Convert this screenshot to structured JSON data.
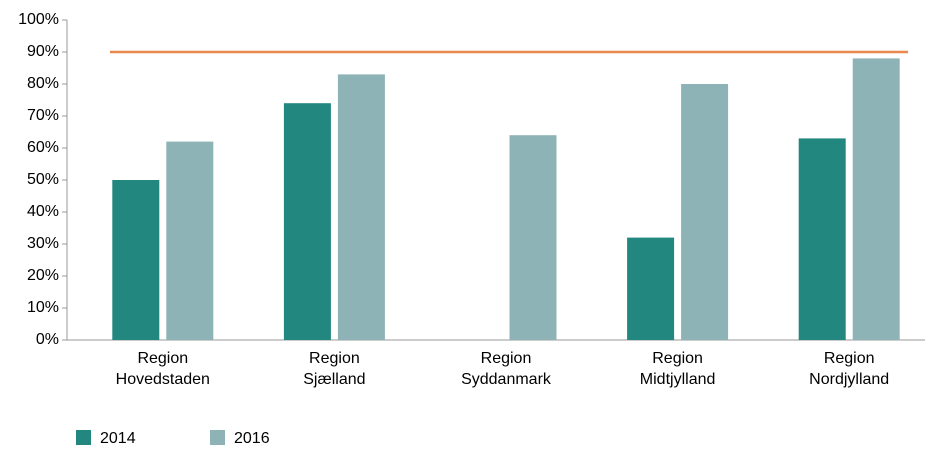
{
  "chart_data": {
    "type": "bar",
    "categories": [
      "Region\nHovedstaden",
      "Region\nSjælland",
      "Region\nSyddanmark",
      "Region\nMidtjylland",
      "Region\nNordjylland"
    ],
    "series": [
      {
        "name": "2014",
        "color": "#21877f",
        "values": [
          50,
          74,
          null,
          32,
          63
        ]
      },
      {
        "name": "2016",
        "color": "#8db3b7",
        "values": [
          62,
          83,
          64,
          80,
          88
        ]
      }
    ],
    "reference_line": {
      "value": 90,
      "color": "#e8884e"
    },
    "ylim": [
      0,
      100
    ],
    "yticks": [
      {
        "value": 0,
        "label": "0%"
      },
      {
        "value": 10,
        "label": "10%"
      },
      {
        "value": 20,
        "label": "20%"
      },
      {
        "value": 30,
        "label": "30%"
      },
      {
        "value": 40,
        "label": "40%"
      },
      {
        "value": 50,
        "label": "50%"
      },
      {
        "value": 60,
        "label": "60%"
      },
      {
        "value": 70,
        "label": "70%"
      },
      {
        "value": 80,
        "label": "80%"
      },
      {
        "value": 90,
        "label": "90%"
      },
      {
        "value": 100,
        "label": "100%"
      }
    ],
    "grid": false,
    "legend": "bottom-left"
  }
}
